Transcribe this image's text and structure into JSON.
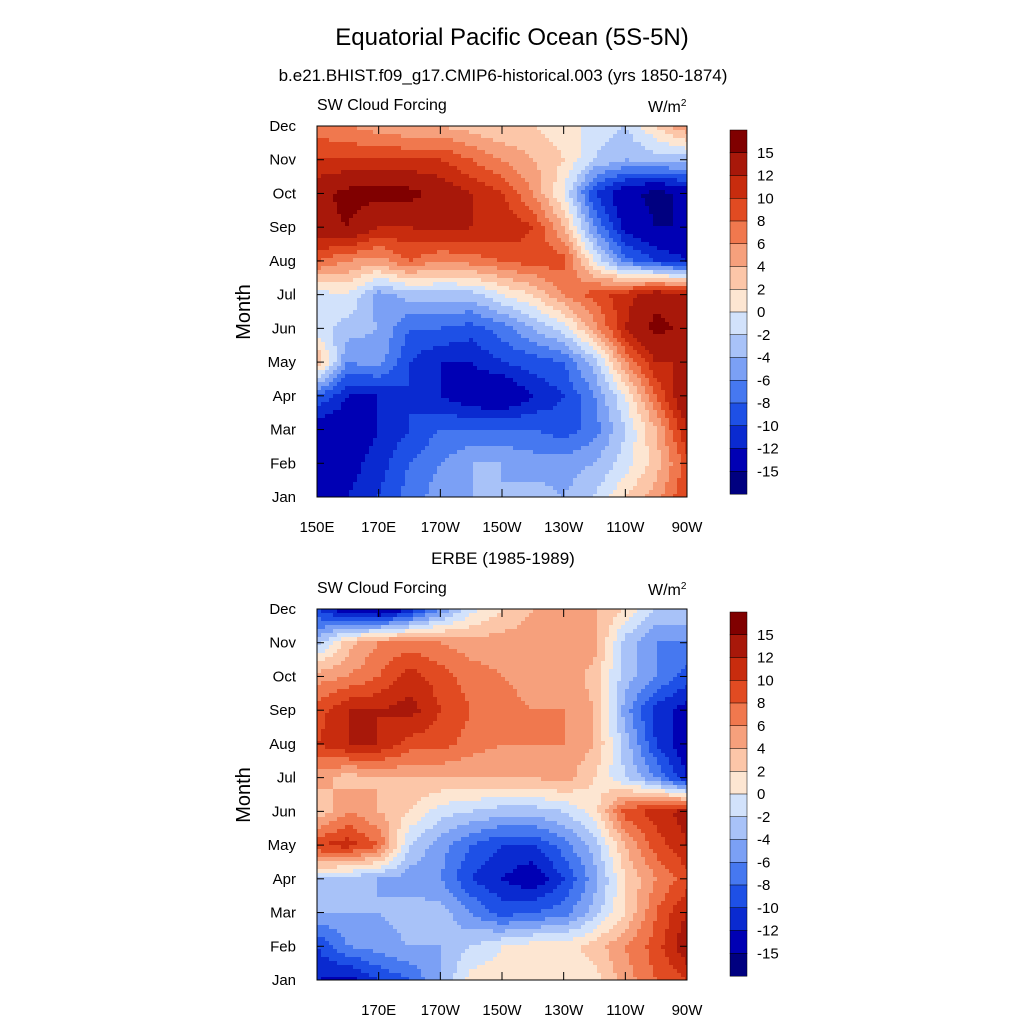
{
  "figure": {
    "title": "Equatorial Pacific Ocean (5S-5N)",
    "colors": [
      "#000080",
      "#0000b4",
      "#0a2ad0",
      "#1e50e6",
      "#4678f0",
      "#7ba0f5",
      "#a8c2f8",
      "#d2e2fb",
      "#fde6d2",
      "#fcc6a8",
      "#f6a07c",
      "#f0784e",
      "#e14b22",
      "#c82c0e",
      "#a8180a",
      "#800000"
    ]
  },
  "chart_data": [
    {
      "type": "heatmap",
      "subtitle": "b.e21.BHIST.f09_g17.CMIP6-historical.003 (yrs 1850-1874)",
      "left_label": "SW Cloud Forcing",
      "right_label": "W/m",
      "right_label_sup": "2",
      "ylabel": "Month",
      "y_ticks": [
        "Jan",
        "Feb",
        "Mar",
        "Apr",
        "May",
        "Jun",
        "Jul",
        "Aug",
        "Sep",
        "Oct",
        "Nov",
        "Dec"
      ],
      "x_ticks": [
        "150E",
        "170E",
        "170W",
        "150W",
        "130W",
        "110W",
        "90W"
      ],
      "x_tick_lon": [
        150,
        170,
        190,
        210,
        230,
        250,
        270
      ],
      "xlim": [
        150,
        270
      ],
      "colorbar_levels": [
        "15",
        "12",
        "10",
        "8",
        "6",
        "4",
        "2",
        "0",
        "-2",
        "-4",
        "-6",
        "-8",
        "-10",
        "-12",
        "-15"
      ],
      "lon_grid": [
        150,
        160,
        170,
        180,
        190,
        200,
        210,
        220,
        230,
        240,
        250,
        260,
        270
      ],
      "month_grid": [
        1,
        2,
        3,
        4,
        5,
        6,
        7,
        8,
        9,
        10,
        11,
        12
      ],
      "values": [
        [
          -12,
          -12,
          -10,
          -7,
          -5,
          -4,
          -4,
          -3,
          -4,
          -2,
          2,
          5,
          10
        ],
        [
          -12,
          -13,
          -11,
          -8,
          -6,
          -4,
          -4,
          -5,
          -5,
          -4,
          -1,
          3,
          9
        ],
        [
          -14,
          -14,
          -12,
          -10,
          -8,
          -8,
          -8,
          -8,
          -9,
          -7,
          -2,
          4,
          12
        ],
        [
          -8,
          -12,
          -12,
          -10,
          -12,
          -14,
          -15,
          -12,
          -10,
          -6,
          0,
          8,
          15
        ],
        [
          4,
          -6,
          -5,
          -10,
          -12,
          -12,
          -10,
          -9,
          -8,
          -3,
          6,
          12,
          12
        ],
        [
          -1,
          -3,
          -4,
          -8,
          -8,
          -9,
          -7,
          -4,
          -1,
          5,
          12,
          16,
          14
        ],
        [
          -1,
          0,
          -5,
          -3,
          -3,
          -3,
          0,
          2,
          6,
          9,
          11,
          14,
          13
        ],
        [
          8,
          6,
          5,
          8,
          6,
          7,
          8,
          9,
          9,
          0,
          -7,
          -10,
          -12
        ],
        [
          14,
          15,
          12,
          12,
          13,
          12,
          12,
          10,
          4,
          -6,
          -13,
          -15,
          -15
        ],
        [
          14,
          16,
          16,
          16,
          14,
          12,
          10,
          6,
          0,
          -10,
          -14,
          -16,
          -14
        ],
        [
          10,
          10,
          10,
          10,
          10,
          8,
          6,
          4,
          2,
          -2,
          -4,
          -3,
          -3
        ],
        [
          7,
          6,
          5,
          4,
          4,
          3,
          2,
          2,
          1,
          -1,
          -2,
          2,
          6
        ]
      ]
    },
    {
      "type": "heatmap",
      "subtitle": "ERBE (1985-1989)",
      "left_label": "SW Cloud Forcing",
      "right_label": "W/m",
      "right_label_sup": "2",
      "ylabel": "Month",
      "y_ticks": [
        "Jan",
        "Feb",
        "Mar",
        "Apr",
        "May",
        "Jun",
        "Jul",
        "Aug",
        "Sep",
        "Oct",
        "Nov",
        "Dec"
      ],
      "x_ticks": [
        "170E",
        "170W",
        "150W",
        "130W",
        "110W",
        "90W"
      ],
      "x_tick_lon": [
        170,
        190,
        210,
        230,
        250,
        270
      ],
      "xlim": [
        150,
        270
      ],
      "colorbar_levels": [
        "15",
        "12",
        "10",
        "8",
        "6",
        "4",
        "2",
        "0",
        "-2",
        "-4",
        "-6",
        "-8",
        "-10",
        "-12",
        "-15"
      ],
      "lon_grid": [
        150,
        160,
        170,
        180,
        190,
        200,
        210,
        220,
        230,
        240,
        250,
        260,
        270
      ],
      "month_grid": [
        1,
        2,
        3,
        4,
        5,
        6,
        7,
        8,
        9,
        10,
        11,
        12
      ],
      "values": [
        [
          -12,
          -13,
          -10,
          -8,
          -4,
          1,
          1,
          1,
          1,
          1,
          5,
          8,
          10
        ],
        [
          -10,
          -6,
          -5,
          -4,
          -4,
          -2,
          0,
          1,
          1,
          3,
          6,
          9,
          14
        ],
        [
          -4,
          -4,
          -4,
          -3,
          -3,
          -6,
          -9,
          -8,
          -7,
          -3,
          2,
          8,
          12
        ],
        [
          -2,
          -3,
          -4,
          -5,
          -6,
          -10,
          -12,
          -14,
          -10,
          -5,
          2,
          6,
          9
        ],
        [
          10,
          11,
          8,
          -2,
          -5,
          -8,
          -10,
          -10,
          -7,
          -3,
          4,
          9,
          12
        ],
        [
          2,
          6,
          4,
          2,
          -1,
          -2,
          -3,
          -3,
          -2,
          1,
          9,
          11,
          13
        ],
        [
          5,
          3,
          4,
          4,
          4,
          4,
          4,
          4,
          5,
          2,
          -2,
          -6,
          -12
        ],
        [
          10,
          12,
          12,
          9,
          9,
          7,
          6,
          6,
          6,
          4,
          -3,
          -10,
          -14
        ],
        [
          9,
          12,
          12,
          13,
          10,
          8,
          7,
          6,
          6,
          4,
          -5,
          -11,
          -13
        ],
        [
          5,
          6,
          8,
          11,
          9,
          7,
          6,
          5,
          6,
          3,
          -3,
          -6,
          -9
        ],
        [
          -3,
          3,
          6,
          7,
          6,
          5,
          5,
          5,
          5,
          5,
          -3,
          -6,
          -6
        ],
        [
          -10,
          -14,
          -16,
          -12,
          -6,
          -1,
          2,
          4,
          4,
          4,
          2,
          -2,
          -2
        ]
      ]
    }
  ]
}
